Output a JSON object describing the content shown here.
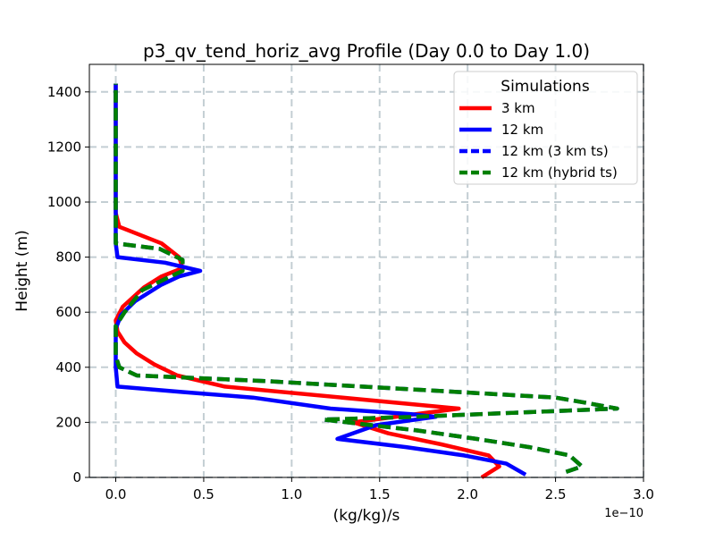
{
  "chart_data": {
    "type": "line",
    "title": "p3_qv_tend_horiz_avg Profile (Day 0.0 to Day 1.0)",
    "xlabel": "(kg/kg)/s",
    "ylabel": "Height (m)",
    "x_offset_label": "1e−10",
    "xlim": [
      -0.15,
      3.0
    ],
    "ylim": [
      0,
      1500
    ],
    "xticks": [
      0.0,
      0.5,
      1.0,
      1.5,
      2.0,
      2.5,
      3.0
    ],
    "xtick_labels": [
      "0.0",
      "0.5",
      "1.0",
      "1.5",
      "2.0",
      "2.5",
      "3.0"
    ],
    "yticks": [
      0,
      200,
      400,
      600,
      800,
      1000,
      1200,
      1400
    ],
    "ytick_labels": [
      "0",
      "200",
      "400",
      "600",
      "800",
      "1000",
      "1200",
      "1400"
    ],
    "grid": true,
    "legend": {
      "title": "Simulations",
      "position": "top-right"
    },
    "series": [
      {
        "name": "3 km",
        "color": "#ff0000",
        "style": "solid",
        "dash_color": "",
        "points": [
          [
            2.08,
            0
          ],
          [
            2.18,
            40
          ],
          [
            2.12,
            80
          ],
          [
            1.85,
            120
          ],
          [
            1.55,
            160
          ],
          [
            1.35,
            200
          ],
          [
            1.95,
            250
          ],
          [
            0.62,
            330
          ],
          [
            0.35,
            370
          ],
          [
            0.22,
            410
          ],
          [
            0.12,
            450
          ],
          [
            0.05,
            490
          ],
          [
            0.01,
            530
          ],
          [
            0.0,
            570
          ],
          [
            0.04,
            620
          ],
          [
            0.16,
            690
          ],
          [
            0.26,
            730
          ],
          [
            0.38,
            760
          ],
          [
            0.36,
            800
          ],
          [
            0.26,
            850
          ],
          [
            0.02,
            910
          ],
          [
            0.0,
            960
          ],
          [
            0.0,
            1000
          ],
          [
            0.0,
            1200
          ],
          [
            0.0,
            1430
          ]
        ]
      },
      {
        "name": "12 km",
        "color": "#0000ff",
        "style": "solid",
        "dash_color": "",
        "points": [
          [
            2.33,
            10
          ],
          [
            2.22,
            50
          ],
          [
            1.98,
            80
          ],
          [
            1.65,
            110
          ],
          [
            1.26,
            140
          ],
          [
            1.48,
            190
          ],
          [
            1.82,
            220
          ],
          [
            1.68,
            230
          ],
          [
            1.22,
            250
          ],
          [
            0.78,
            290
          ],
          [
            0.38,
            310
          ],
          [
            0.01,
            330
          ],
          [
            0.0,
            400
          ],
          [
            0.0,
            540
          ],
          [
            0.03,
            590
          ],
          [
            0.11,
            640
          ],
          [
            0.26,
            700
          ],
          [
            0.36,
            730
          ],
          [
            0.48,
            750
          ],
          [
            0.28,
            780
          ],
          [
            0.01,
            800
          ],
          [
            0.0,
            850
          ],
          [
            0.0,
            1000
          ],
          [
            0.0,
            1430
          ]
        ]
      },
      {
        "name": "12 km (3 km ts)",
        "color": "#0000ff",
        "style": "dashed",
        "dash_color": "",
        "points": [
          [
            2.56,
            20
          ],
          [
            2.65,
            40
          ],
          [
            2.58,
            80
          ],
          [
            2.35,
            110
          ],
          [
            2.05,
            140
          ],
          [
            1.72,
            170
          ],
          [
            1.45,
            190
          ],
          [
            1.18,
            210
          ],
          [
            1.7,
            220
          ],
          [
            2.85,
            250
          ],
          [
            2.68,
            270
          ],
          [
            2.5,
            290
          ],
          [
            1.95,
            310
          ],
          [
            1.4,
            330
          ],
          [
            0.85,
            350
          ],
          [
            0.12,
            370
          ],
          [
            0.02,
            400
          ],
          [
            0.0,
            440
          ],
          [
            0.0,
            550
          ],
          [
            0.05,
            600
          ],
          [
            0.15,
            680
          ],
          [
            0.28,
            720
          ],
          [
            0.38,
            750
          ],
          [
            0.38,
            790
          ],
          [
            0.25,
            830
          ],
          [
            0.0,
            850
          ],
          [
            0.0,
            1000
          ],
          [
            0.0,
            1430
          ]
        ]
      },
      {
        "name": "12 km (hybrid ts)",
        "color": "#008000",
        "style": "dashed",
        "dash_color": "",
        "points": [
          [
            2.56,
            20
          ],
          [
            2.65,
            40
          ],
          [
            2.58,
            80
          ],
          [
            2.35,
            110
          ],
          [
            2.05,
            140
          ],
          [
            1.72,
            170
          ],
          [
            1.45,
            190
          ],
          [
            1.18,
            210
          ],
          [
            1.7,
            220
          ],
          [
            2.85,
            250
          ],
          [
            2.68,
            270
          ],
          [
            2.5,
            290
          ],
          [
            1.95,
            310
          ],
          [
            1.4,
            330
          ],
          [
            0.85,
            350
          ],
          [
            0.12,
            370
          ],
          [
            0.02,
            400
          ],
          [
            0.0,
            440
          ],
          [
            0.0,
            550
          ],
          [
            0.05,
            600
          ],
          [
            0.15,
            680
          ],
          [
            0.28,
            720
          ],
          [
            0.38,
            750
          ],
          [
            0.38,
            790
          ],
          [
            0.25,
            830
          ],
          [
            0.0,
            850
          ],
          [
            0.0,
            1000
          ],
          [
            0.0,
            1430
          ]
        ]
      }
    ]
  }
}
